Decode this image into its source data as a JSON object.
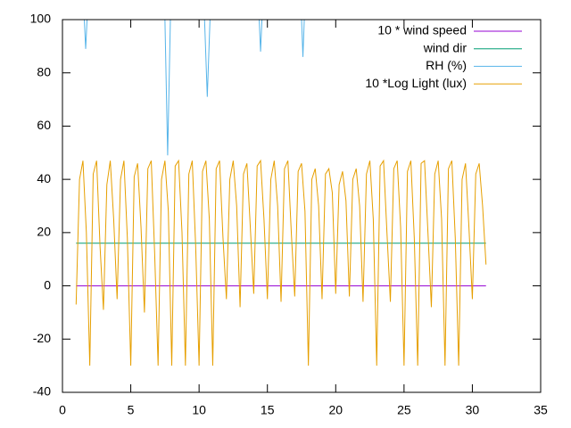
{
  "chart_data": {
    "type": "line",
    "xlim": [
      0,
      35
    ],
    "xticks": [
      0,
      5,
      10,
      15,
      20,
      25,
      30,
      35
    ],
    "ylim": [
      -40,
      100
    ],
    "yticks": [
      -40,
      -20,
      0,
      20,
      40,
      60,
      80,
      100
    ],
    "legend": "top-right",
    "grid": false,
    "series": [
      {
        "name": "10 * wind speed",
        "color": "#9400d3",
        "x": [
          1,
          31
        ],
        "values": [
          0,
          0
        ]
      },
      {
        "name": "wind dir",
        "color": "#009e73",
        "x": [
          1,
          31
        ],
        "values": [
          16,
          16
        ]
      },
      {
        "name": "RH (%)",
        "color": "#56b4e9",
        "x": [
          1,
          1.6,
          1.7,
          1.8,
          2,
          7.5,
          7.7,
          7.9,
          10.4,
          10.6,
          10.8,
          14.4,
          14.5,
          14.6,
          17.5,
          17.6,
          17.7,
          31
        ],
        "values": [
          100,
          100,
          89,
          100,
          100,
          100,
          49,
          100,
          100,
          71,
          100,
          100,
          88,
          100,
          100,
          86,
          100,
          100
        ]
      },
      {
        "name": "10 *Log Light (lux)",
        "color": "#e69f00",
        "x": [
          1,
          1.25,
          1.5,
          1.75,
          2,
          2.25,
          2.5,
          2.75,
          3,
          3.25,
          3.5,
          3.75,
          4,
          4.25,
          4.5,
          4.75,
          5,
          5.25,
          5.5,
          5.75,
          6,
          6.25,
          6.5,
          6.75,
          7,
          7.25,
          7.5,
          7.75,
          8,
          8.25,
          8.5,
          8.75,
          9,
          9.25,
          9.5,
          9.75,
          10,
          10.25,
          10.5,
          10.75,
          11,
          11.25,
          11.5,
          11.75,
          12,
          12.25,
          12.5,
          12.75,
          13,
          13.25,
          13.5,
          13.75,
          14,
          14.25,
          14.5,
          14.75,
          15,
          15.25,
          15.5,
          15.75,
          16,
          16.25,
          16.5,
          16.75,
          17,
          17.25,
          17.5,
          17.75,
          18,
          18.25,
          18.5,
          18.75,
          19,
          19.25,
          19.5,
          19.75,
          20,
          20.25,
          20.5,
          20.75,
          21,
          21.25,
          21.5,
          21.75,
          22,
          22.25,
          22.5,
          22.75,
          23,
          23.25,
          23.5,
          23.75,
          24,
          24.25,
          24.5,
          24.75,
          25,
          25.25,
          25.5,
          25.75,
          26,
          26.25,
          26.5,
          26.75,
          27,
          27.25,
          27.5,
          27.75,
          28,
          28.25,
          28.5,
          28.75,
          29,
          29.25,
          29.5,
          29.75,
          30,
          30.25,
          30.5,
          30.75,
          31
        ],
        "values": [
          -7,
          40,
          47,
          20,
          -30,
          42,
          47,
          15,
          -9,
          38,
          47,
          25,
          -5,
          40,
          47,
          18,
          -30,
          41,
          46,
          22,
          -10,
          44,
          47,
          12,
          -30,
          40,
          47,
          28,
          -30,
          45,
          47,
          20,
          -30,
          42,
          47,
          15,
          -30,
          43,
          47,
          25,
          -30,
          44,
          47,
          18,
          -5,
          40,
          47,
          30,
          -8,
          42,
          46,
          22,
          -3,
          45,
          47,
          25,
          -5,
          40,
          47,
          30,
          -6,
          44,
          47,
          20,
          -4,
          43,
          46,
          28,
          -30,
          40,
          44,
          30,
          -5,
          42,
          44,
          35,
          -3,
          38,
          43,
          32,
          -4,
          40,
          44,
          30,
          -6,
          42,
          47,
          25,
          -30,
          45,
          47,
          20,
          -6,
          44,
          47,
          22,
          -30,
          43,
          47,
          18,
          -30,
          46,
          47,
          20,
          -8,
          42,
          47,
          25,
          -30,
          44,
          47,
          18,
          -30,
          40,
          46,
          22,
          -5,
          42,
          46,
          30,
          8
        ]
      }
    ]
  }
}
